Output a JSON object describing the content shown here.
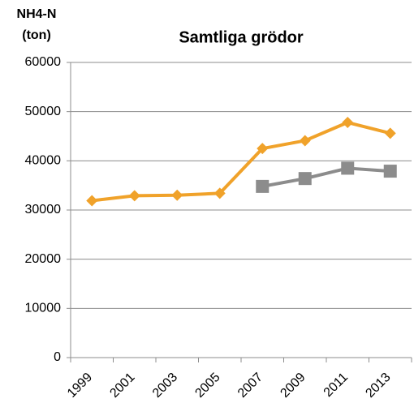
{
  "chart_data": {
    "type": "line",
    "title": "Samtliga grödor",
    "ylabel": [
      "NH4-N",
      "(ton)"
    ],
    "categories": [
      "1999",
      "2001",
      "2003",
      "2005",
      "2007",
      "2009",
      "2011",
      "2013"
    ],
    "series": [
      {
        "color": "#f0a22a",
        "marker": "diamond",
        "values": [
          31900,
          32900,
          33000,
          33400,
          42500,
          44100,
          47800,
          45600
        ]
      },
      {
        "color": "#8c8c8c",
        "marker": "square",
        "values": [
          null,
          null,
          null,
          null,
          34800,
          36400,
          38500,
          37900
        ]
      }
    ],
    "ylim": [
      0,
      60000
    ],
    "yticks": [
      0,
      10000,
      20000,
      30000,
      40000,
      50000,
      60000
    ],
    "grid": true
  }
}
